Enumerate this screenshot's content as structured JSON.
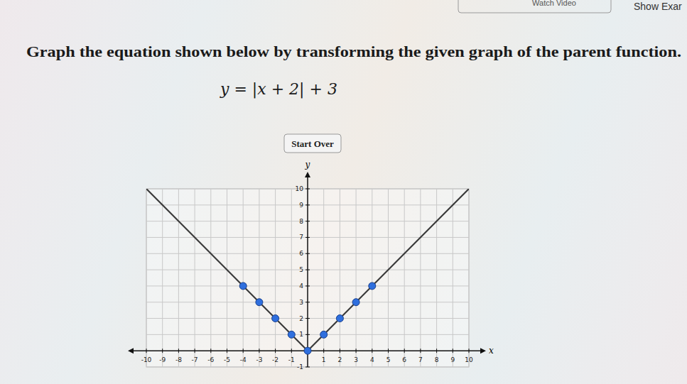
{
  "page": {
    "header_links": [
      "Watch Video",
      "Show Exar"
    ],
    "instruction": "Graph the equation shown below by transforming the given graph of the parent function.",
    "equation": "y = |x + 2| + 3",
    "button": "Start Over"
  },
  "chart_data": {
    "type": "line",
    "xlabel": "x",
    "ylabel": "y",
    "xlim": [
      -10,
      10
    ],
    "ylim": [
      -1,
      10
    ],
    "xticks": [
      -10,
      -9,
      -8,
      -7,
      -6,
      -5,
      -4,
      -3,
      -2,
      -1,
      1,
      2,
      3,
      4,
      5,
      6,
      7,
      8,
      9,
      10
    ],
    "yticks": [
      -1,
      1,
      2,
      3,
      4,
      5,
      6,
      7,
      8,
      9,
      10
    ],
    "grid": true,
    "series": [
      {
        "type": "line",
        "color": "#3a3a3a",
        "x": [
          -10,
          0,
          10
        ],
        "values": [
          10,
          0,
          10
        ]
      },
      {
        "type": "scatter",
        "color": "#2f6fde",
        "marker": "circle",
        "x": [
          -4,
          -3,
          -2,
          -1,
          0,
          1,
          2,
          3,
          4
        ],
        "values": [
          4,
          3,
          2,
          1,
          0,
          1,
          2,
          3,
          4
        ]
      }
    ]
  }
}
